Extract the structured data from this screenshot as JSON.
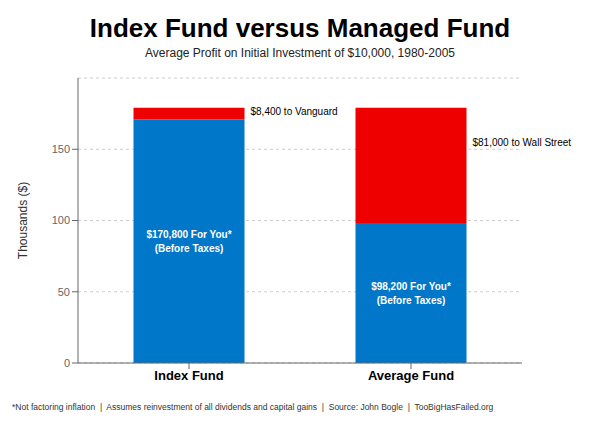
{
  "chart_data": {
    "type": "bar",
    "title": "Index Fund versus Managed Fund",
    "subtitle": "Average Profit on Initial Investment of $10,000, 1980-2005",
    "footnote": "*Not factoring inflation  |  Assumes reinvestment of all dividends and capital gains  |  Source: John Bogle  |  TooBigHasFailed.org",
    "categories": [
      "Index Fund",
      "Average Fund"
    ],
    "series": [
      {
        "color": "#0077C8",
        "values": [
          170.8,
          98.2
        ],
        "value_labels": [
          "$170,800 For You*\n(Before Taxes)",
          "$98,200 For You*\n(Before Taxes)"
        ]
      },
      {
        "color": "#EE0000",
        "values": [
          8.4,
          81.0
        ],
        "value_labels": [
          "$8,400 to Vanguard",
          "$81,000 to Wall Street"
        ]
      }
    ],
    "stacked": true,
    "ylabel": "Thousands ($)",
    "ylim": [
      0,
      200
    ],
    "yticks": [
      0,
      50,
      100,
      150
    ],
    "grid": true
  }
}
